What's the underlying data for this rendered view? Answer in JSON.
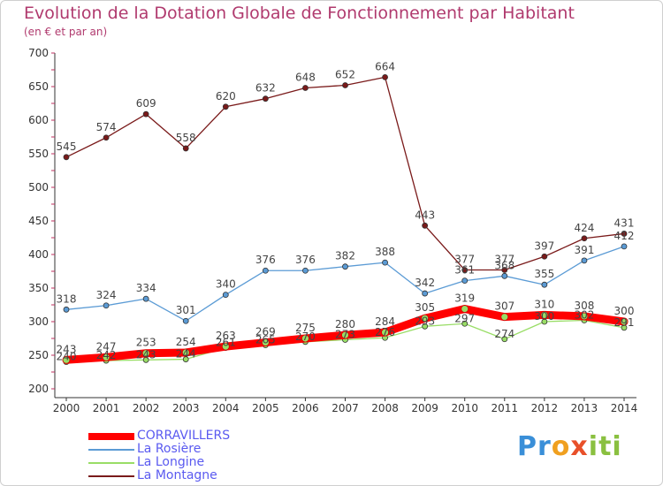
{
  "title": "Evolution de la Dotation Globale de Fonctionnement par Habitant",
  "subtitle": "(en € et par an)",
  "logo_text": "Proxiti",
  "chart_data": {
    "type": "line",
    "x": [
      "2000",
      "2001",
      "2002",
      "2003",
      "2004",
      "2005",
      "2006",
      "2007",
      "2008",
      "2009",
      "2010",
      "2011",
      "2012",
      "2013",
      "2014"
    ],
    "ylim": [
      200,
      700
    ],
    "yticks": [
      200,
      250,
      300,
      350,
      400,
      450,
      500,
      550,
      600,
      650,
      700
    ],
    "grid": false,
    "legend_position": "bottom-left",
    "series": [
      {
        "name": "CORRAVILLERS",
        "color": "#ff0000",
        "values": [
          243,
          247,
          253,
          254,
          263,
          269,
          275,
          280,
          284,
          305,
          319,
          307,
          310,
          308,
          300
        ],
        "data_labels": [
          "243",
          "247",
          "253",
          "254",
          "263",
          "269",
          "275",
          "280",
          "284",
          "305",
          "319",
          "307",
          "310",
          "308",
          "300"
        ]
      },
      {
        "name": "La Rosière",
        "color": "#5b9bd5",
        "values": [
          318,
          324,
          334,
          301,
          340,
          376,
          376,
          382,
          388,
          342,
          361,
          368,
          355,
          391,
          412
        ],
        "data_labels": [
          "318",
          "324",
          "334",
          "301",
          "340",
          "376",
          "376",
          "382",
          "388",
          "342",
          "361",
          "368",
          "355",
          "391",
          "412"
        ]
      },
      {
        "name": "La Longine",
        "color": "#99dd66",
        "values": [
          240,
          242,
          243,
          244,
          261,
          265,
          270,
          273,
          276,
          293,
          297,
          274,
          300,
          302,
          291
        ],
        "data_labels": [
          "240",
          "242",
          "243",
          "244",
          "261",
          "265",
          "270",
          "273",
          "276",
          "293",
          "297",
          "274",
          "300",
          "302",
          "291"
        ]
      },
      {
        "name": "La Montagne",
        "color": "#7a1a1a",
        "values": [
          545,
          574,
          609,
          558,
          620,
          632,
          648,
          652,
          664,
          443,
          377,
          377,
          397,
          424,
          431
        ],
        "data_labels": [
          "545",
          "574",
          "609",
          "558",
          "620",
          "632",
          "648",
          "652",
          "664",
          "443",
          "377",
          "377",
          "397",
          "424",
          "431"
        ]
      }
    ]
  }
}
